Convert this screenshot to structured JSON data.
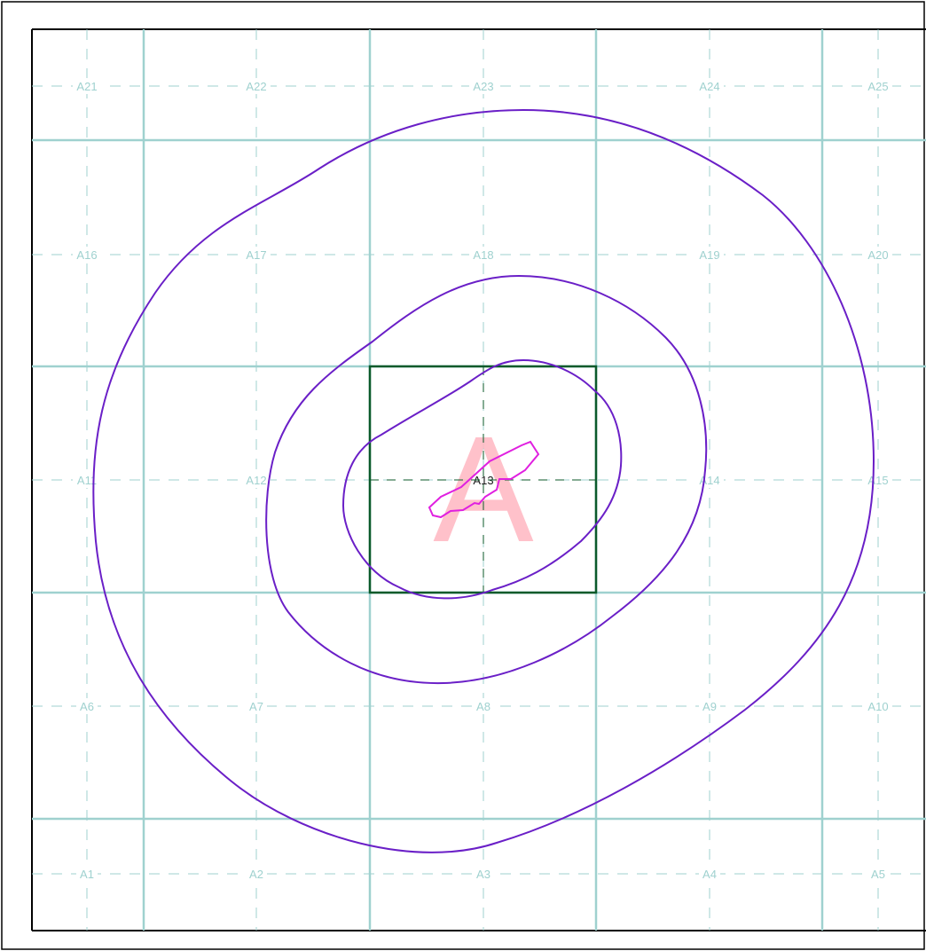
{
  "grid": {
    "cells": [
      {
        "id": "A1",
        "label": "A1"
      },
      {
        "id": "A2",
        "label": "A2"
      },
      {
        "id": "A3",
        "label": "A3"
      },
      {
        "id": "A4",
        "label": "A4"
      },
      {
        "id": "A5",
        "label": "A5"
      },
      {
        "id": "A6",
        "label": "A6"
      },
      {
        "id": "A7",
        "label": "A7"
      },
      {
        "id": "A8",
        "label": "A8"
      },
      {
        "id": "A9",
        "label": "A9"
      },
      {
        "id": "A10",
        "label": "A10"
      },
      {
        "id": "A11",
        "label": "A11"
      },
      {
        "id": "A12",
        "label": "A12"
      },
      {
        "id": "A13",
        "label": "A13"
      },
      {
        "id": "A14",
        "label": "A14"
      },
      {
        "id": "A15",
        "label": "A15"
      },
      {
        "id": "A16",
        "label": "A16"
      },
      {
        "id": "A17",
        "label": "A17"
      },
      {
        "id": "A18",
        "label": "A18"
      },
      {
        "id": "A19",
        "label": "A19"
      },
      {
        "id": "A20",
        "label": "A20"
      },
      {
        "id": "A21",
        "label": "A21"
      },
      {
        "id": "A22",
        "label": "A22"
      },
      {
        "id": "A23",
        "label": "A23"
      },
      {
        "id": "A24",
        "label": "A24"
      },
      {
        "id": "A25",
        "label": "A25"
      }
    ],
    "selected_cell": "A13"
  },
  "overlay": {
    "letter": "A"
  },
  "colors": {
    "grid_line": "#9fd1cf",
    "grid_dash": "#9fd1cf",
    "contour": "#6a1fc7",
    "selection_box": "#0b5a2a",
    "site_outline": "#e020e0",
    "letter": "#ffb6c1",
    "frame": "#000000"
  }
}
